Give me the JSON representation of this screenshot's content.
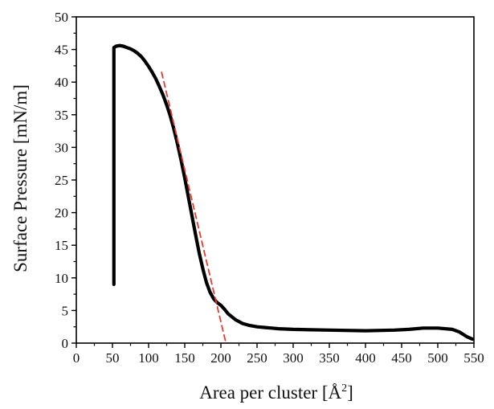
{
  "chart_data": {
    "type": "line",
    "title": "",
    "xlabel": "Area per cluster [Å",
    "xlabel_sup": "2",
    "xlabel_close": "]",
    "ylabel": "Surface Pressure [mN/m]",
    "xlim": [
      0,
      550
    ],
    "ylim": [
      0,
      50
    ],
    "x_ticks": [
      0,
      50,
      100,
      150,
      200,
      250,
      300,
      350,
      400,
      450,
      500,
      550
    ],
    "y_ticks": [
      0,
      5,
      10,
      15,
      20,
      25,
      30,
      35,
      40,
      45,
      50
    ],
    "grid": false,
    "legend": "none",
    "series": [
      {
        "color": "#000000",
        "style": "solid",
        "x": [
          52,
          52,
          55,
          60,
          65,
          70,
          75,
          80,
          85,
          90,
          95,
          100,
          105,
          110,
          115,
          120,
          125,
          130,
          135,
          140,
          145,
          150,
          155,
          160,
          165,
          170,
          175,
          180,
          185,
          190,
          195,
          200,
          205,
          210,
          220,
          230,
          240,
          250,
          260,
          270,
          280,
          300,
          350,
          400,
          440,
          460,
          480,
          500,
          520,
          530,
          540,
          548
        ],
        "y": [
          9,
          45.3,
          45.5,
          45.6,
          45.5,
          45.3,
          45.1,
          44.8,
          44.4,
          43.9,
          43.2,
          42.4,
          41.5,
          40.5,
          39.3,
          38.0,
          36.5,
          34.8,
          32.8,
          30.5,
          28.0,
          25.3,
          22.4,
          19.5,
          16.6,
          13.8,
          11.4,
          9.3,
          7.8,
          6.8,
          6.2,
          5.8,
          5.2,
          4.5,
          3.6,
          3.0,
          2.7,
          2.5,
          2.4,
          2.3,
          2.2,
          2.1,
          2.0,
          1.9,
          2.0,
          2.1,
          2.3,
          2.3,
          2.1,
          1.7,
          1.0,
          0.6
        ]
      },
      {
        "color": "#e8392b",
        "style": "dashed",
        "x": [
          118,
          207
        ],
        "y": [
          41.5,
          0
        ]
      }
    ]
  }
}
